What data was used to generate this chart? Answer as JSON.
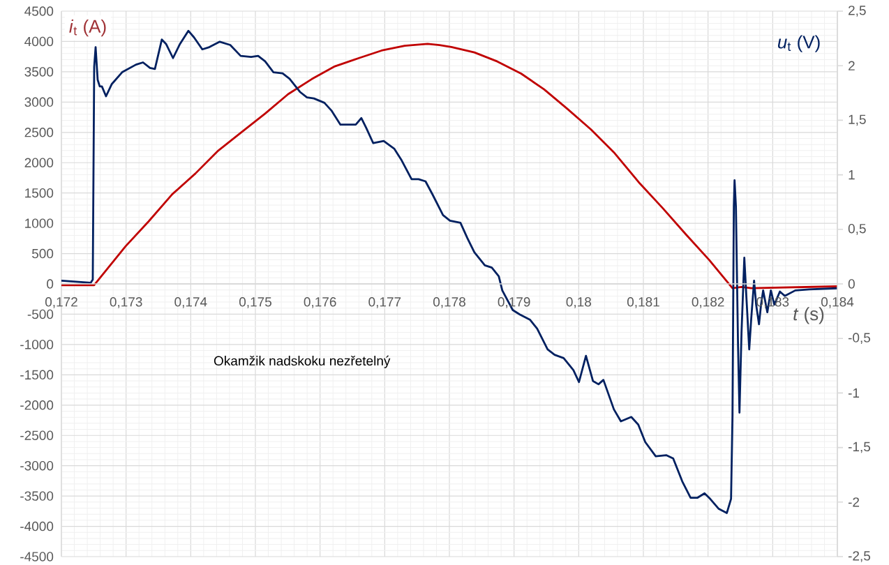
{
  "chart_data": {
    "type": "line",
    "ylabel": "*i*$_{t}$ (A)",
    "y2label": "*u*$_{t}$ (V)",
    "xlabel": "*t* (s)",
    "annotations": [
      "Okamžik nadskoku nezřetelný"
    ],
    "xlim": [
      0.172,
      0.184
    ],
    "xticks": [
      {
        "value": 0.172,
        "label": "0,172"
      },
      {
        "value": 0.173,
        "label": "0,173"
      },
      {
        "value": 0.174,
        "label": "0,174"
      },
      {
        "value": 0.175,
        "label": "0,175"
      },
      {
        "value": 0.176,
        "label": "0,176"
      },
      {
        "value": 0.177,
        "label": "0,177"
      },
      {
        "value": 0.178,
        "label": "0,178"
      },
      {
        "value": 0.179,
        "label": "0,179"
      },
      {
        "value": 0.18,
        "label": "0,18"
      },
      {
        "value": 0.181,
        "label": "0,181"
      },
      {
        "value": 0.182,
        "label": "0,182"
      },
      {
        "value": 0.183,
        "label": "0,183"
      },
      {
        "value": 0.184,
        "label": "0,184"
      }
    ],
    "ylim": [
      -4500,
      4500
    ],
    "yticks": [
      -4500,
      -4000,
      -3500,
      -3000,
      -2500,
      -2000,
      -1500,
      -1000,
      -500,
      0,
      500,
      1000,
      1500,
      2000,
      2500,
      3000,
      3500,
      4000,
      4500
    ],
    "y2lim": [
      -2.5,
      2.5
    ],
    "y2ticks": [
      {
        "value": -2.5,
        "label": "-2,5"
      },
      -2,
      {
        "value": -1.5,
        "label": "-1,5"
      },
      -1,
      {
        "value": -0.5,
        "label": "-0,5"
      },
      0,
      {
        "value": 0.5,
        "label": "0,5"
      },
      1,
      {
        "value": 1.5,
        "label": "1,5"
      },
      2,
      {
        "value": 2.5,
        "label": "2,5"
      }
    ],
    "grid": true,
    "series": [
      {
        "color": "#c00000",
        "x": [
          0.172,
          0.172507,
          0.172992,
          0.173348,
          0.173715,
          0.174071,
          0.174427,
          0.174794,
          0.17515,
          0.175506,
          0.175873,
          0.176229,
          0.176585,
          0.176951,
          0.177307,
          0.177663,
          0.177847,
          0.17803,
          0.178386,
          0.178742,
          0.179109,
          0.179465,
          0.179822,
          0.180188,
          0.180544,
          0.180943,
          0.181299,
          0.181655,
          0.182022,
          0.182378,
          0.182518,
          0.182669,
          0.184
        ],
        "values": [
          -20,
          -20,
          620,
          1030,
          1480,
          1820,
          2200,
          2510,
          2810,
          3130,
          3380,
          3590,
          3720,
          3850,
          3930,
          3960,
          3940,
          3910,
          3820,
          3670,
          3470,
          3210,
          2890,
          2550,
          2170,
          1660,
          1250,
          820,
          390,
          -70,
          -50,
          -70,
          -40
        ]
      },
      {
        "color": "#002060",
        "axis": "y2",
        "x": [
          0.172,
          0.172453,
          0.172485,
          0.172507,
          0.172529,
          0.172561,
          0.172593,
          0.172626,
          0.17269,
          0.172777,
          0.172939,
          0.173154,
          0.173262,
          0.17337,
          0.173446,
          0.173553,
          0.173618,
          0.173726,
          0.173834,
          0.173963,
          0.17405,
          0.174179,
          0.174287,
          0.174449,
          0.174611,
          0.174772,
          0.174934,
          0.175042,
          0.17515,
          0.175279,
          0.17542,
          0.175528,
          0.175689,
          0.175797,
          0.175905,
          0.176067,
          0.176175,
          0.176315,
          0.176444,
          0.176552,
          0.176639,
          0.176714,
          0.176822,
          0.176984,
          0.177146,
          0.177254,
          0.177415,
          0.177523,
          0.177631,
          0.177739,
          0.177901,
          0.178009,
          0.178171,
          0.178278,
          0.178386,
          0.178548,
          0.178656,
          0.178764,
          0.178818,
          0.17898,
          0.179087,
          0.179249,
          0.179357,
          0.179519,
          0.179627,
          0.179767,
          0.179918,
          0.180004,
          0.180112,
          0.18022,
          0.180306,
          0.180382,
          0.180544,
          0.180652,
          0.180813,
          0.180921,
          0.181029,
          0.181191,
          0.181353,
          0.181461,
          0.181601,
          0.18173,
          0.181838,
          0.181946,
          0.182032,
          0.182162,
          0.182291,
          0.182356,
          0.182378,
          0.182399,
          0.18241,
          0.182431,
          0.182464,
          0.182486,
          0.182518,
          0.182561,
          0.182593,
          0.182637,
          0.182669,
          0.182712,
          0.182744,
          0.182788,
          0.18282,
          0.182852,
          0.182917,
          0.182971,
          0.183025,
          0.183111,
          0.183187,
          0.183349,
          0.183564,
          0.184
        ],
        "values": [
          0.03,
          0.01,
          0.04,
          1.99,
          2.17,
          1.87,
          1.81,
          1.81,
          1.72,
          1.83,
          1.94,
          2.01,
          2.03,
          1.98,
          1.97,
          2.24,
          2.2,
          2.07,
          2.2,
          2.32,
          2.26,
          2.15,
          2.17,
          2.22,
          2.19,
          2.09,
          2.08,
          2.09,
          2.04,
          1.94,
          1.93,
          1.88,
          1.76,
          1.71,
          1.7,
          1.66,
          1.59,
          1.46,
          1.46,
          1.46,
          1.52,
          1.43,
          1.29,
          1.31,
          1.24,
          1.14,
          0.96,
          0.96,
          0.94,
          0.82,
          0.63,
          0.58,
          0.56,
          0.42,
          0.29,
          0.17,
          0.15,
          0.07,
          -0.06,
          -0.24,
          -0.28,
          -0.33,
          -0.41,
          -0.6,
          -0.65,
          -0.68,
          -0.79,
          -0.9,
          -0.66,
          -0.89,
          -0.92,
          -0.88,
          -1.15,
          -1.26,
          -1.22,
          -1.29,
          -1.45,
          -1.58,
          -1.57,
          -1.6,
          -1.81,
          -1.96,
          -1.96,
          -1.92,
          -1.97,
          -2.06,
          -2.1,
          -1.97,
          -1.21,
          0.71,
          0.95,
          0.71,
          -0.57,
          -1.18,
          -0.44,
          0.24,
          -0.12,
          -0.6,
          -0.31,
          0.03,
          -0.19,
          -0.37,
          -0.19,
          -0.06,
          -0.26,
          -0.06,
          -0.19,
          -0.07,
          -0.11,
          -0.06,
          -0.05,
          -0.04
        ]
      }
    ]
  }
}
